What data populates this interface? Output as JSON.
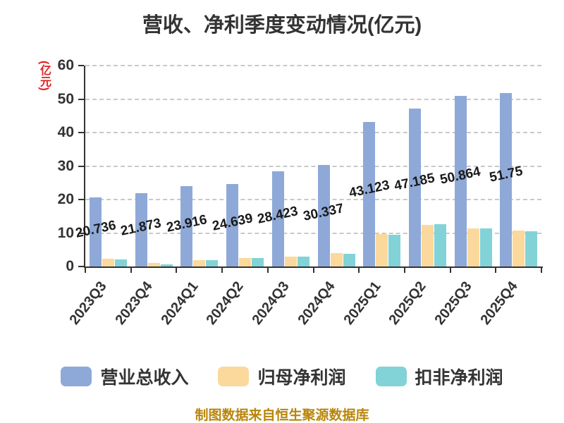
{
  "title": "营收、净利季度变动情况(亿元)",
  "footer": "制图数据来自恒生聚源数据库",
  "colors": {
    "background": "#ffffff",
    "title_text": "#333333",
    "axis": "#333333",
    "gridline": "#c9c9c9",
    "tick_label": "#333333",
    "data_label": "#1a1a1a",
    "y_unit_label": "#e01f1f",
    "footer_text": "#b8860b",
    "series_revenue": "#8ea9d8",
    "series_net_profit": "#fbd99c",
    "series_deducted_net_profit": "#82d3d7"
  },
  "chart_data": {
    "type": "bar",
    "title": "营收、净利季度变动情况(亿元)",
    "y_axis_unit": "(亿元)",
    "xlabel": "",
    "ylabel": "(亿元)",
    "ylim": [
      0,
      60
    ],
    "y_ticks": [
      0,
      10,
      20,
      30,
      40,
      50,
      60
    ],
    "grid": "horizontal dashed",
    "legend_position": "bottom",
    "categories": [
      "2023Q3",
      "2023Q4",
      "2024Q1",
      "2024Q2",
      "2024Q3",
      "2024Q4",
      "2025Q1",
      "2025Q2",
      "2025Q3",
      "2025Q4"
    ],
    "series": [
      {
        "name": "营业总收入",
        "color": "#8ea9d8",
        "values": [
          20.736,
          21.873,
          23.916,
          24.639,
          28.423,
          30.337,
          43.123,
          47.185,
          50.864,
          51.75
        ],
        "data_labels": [
          "20.736",
          "21.873",
          "23.916",
          "24.639",
          "28.423",
          "30.337",
          "43.123",
          "47.185",
          "50.864",
          "51.75"
        ]
      },
      {
        "name": "归母净利润",
        "color": "#fbd99c",
        "values": [
          2.3,
          1.0,
          2.0,
          2.6,
          3.0,
          3.9,
          9.6,
          12.4,
          11.4,
          10.8
        ]
      },
      {
        "name": "扣非净利润",
        "color": "#82d3d7",
        "values": [
          2.2,
          0.7,
          1.9,
          2.5,
          3.0,
          3.7,
          9.4,
          12.6,
          11.3,
          10.5
        ]
      }
    ]
  }
}
